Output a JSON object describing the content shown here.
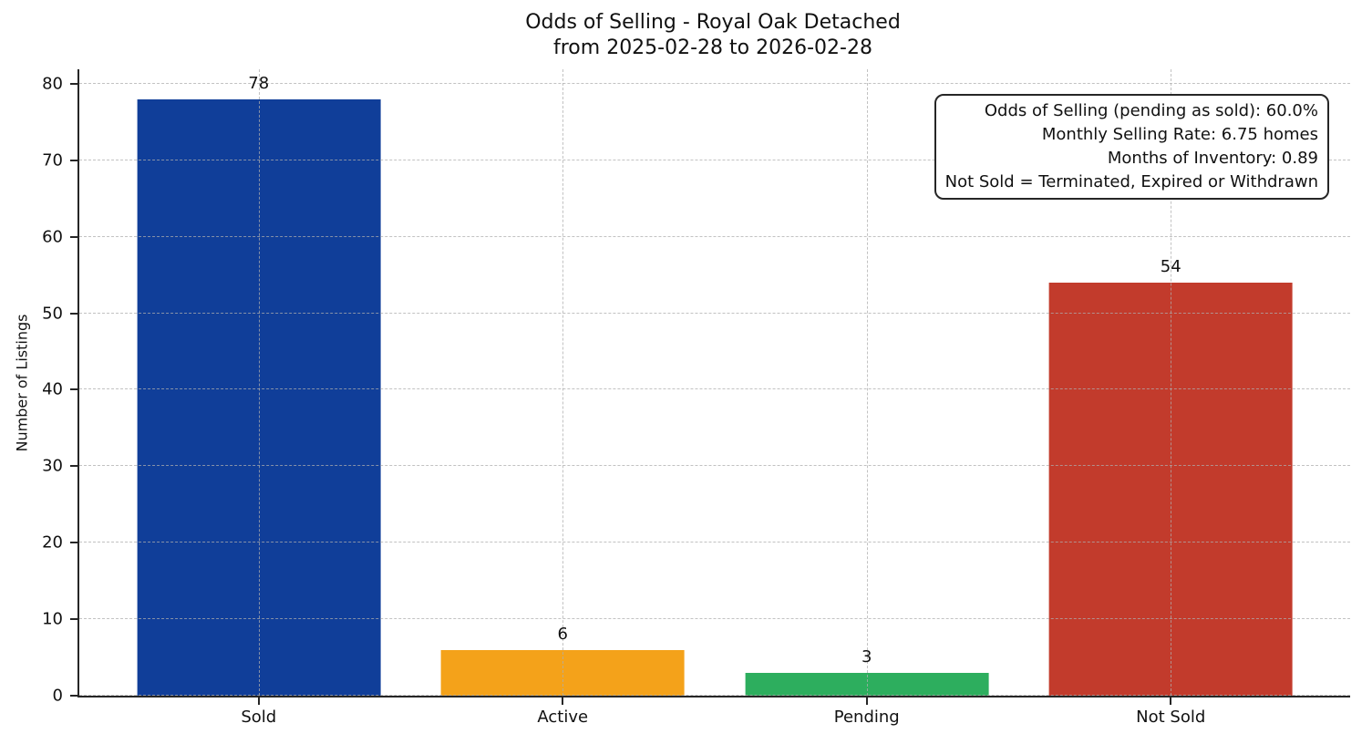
{
  "chart_data": {
    "type": "bar",
    "title": "Odds of Selling - Royal Oak Detached",
    "subtitle": "from 2025-02-28 to 2026-02-28",
    "categories": [
      "Sold",
      "Active",
      "Pending",
      "Not Sold"
    ],
    "values": [
      78,
      6,
      3,
      54
    ],
    "bar_colors": [
      "#103e99",
      "#f4a21a",
      "#2dae5e",
      "#c23b2c"
    ],
    "value_labels": [
      "78",
      "6",
      "3",
      "54"
    ],
    "xlabel": "",
    "ylabel": "Number of Listings",
    "ylim": [
      0,
      81.9
    ],
    "yticks": [
      0,
      10,
      20,
      30,
      40,
      50,
      60,
      70,
      80
    ],
    "grid": "dashed gridlines on both axes, drawn over bars",
    "legend": "none",
    "annotation_box": {
      "position": "top-right",
      "lines": [
        "Odds of Selling (pending as sold): 60.0%",
        "Monthly Selling Rate: 6.75 homes",
        "Months of Inventory: 0.89",
        "Not Sold = Terminated, Expired or Withdrawn"
      ]
    }
  },
  "colors": {
    "background": "#ffffff",
    "text": "#111111",
    "spine": "#262626",
    "grid": "#adadad"
  }
}
